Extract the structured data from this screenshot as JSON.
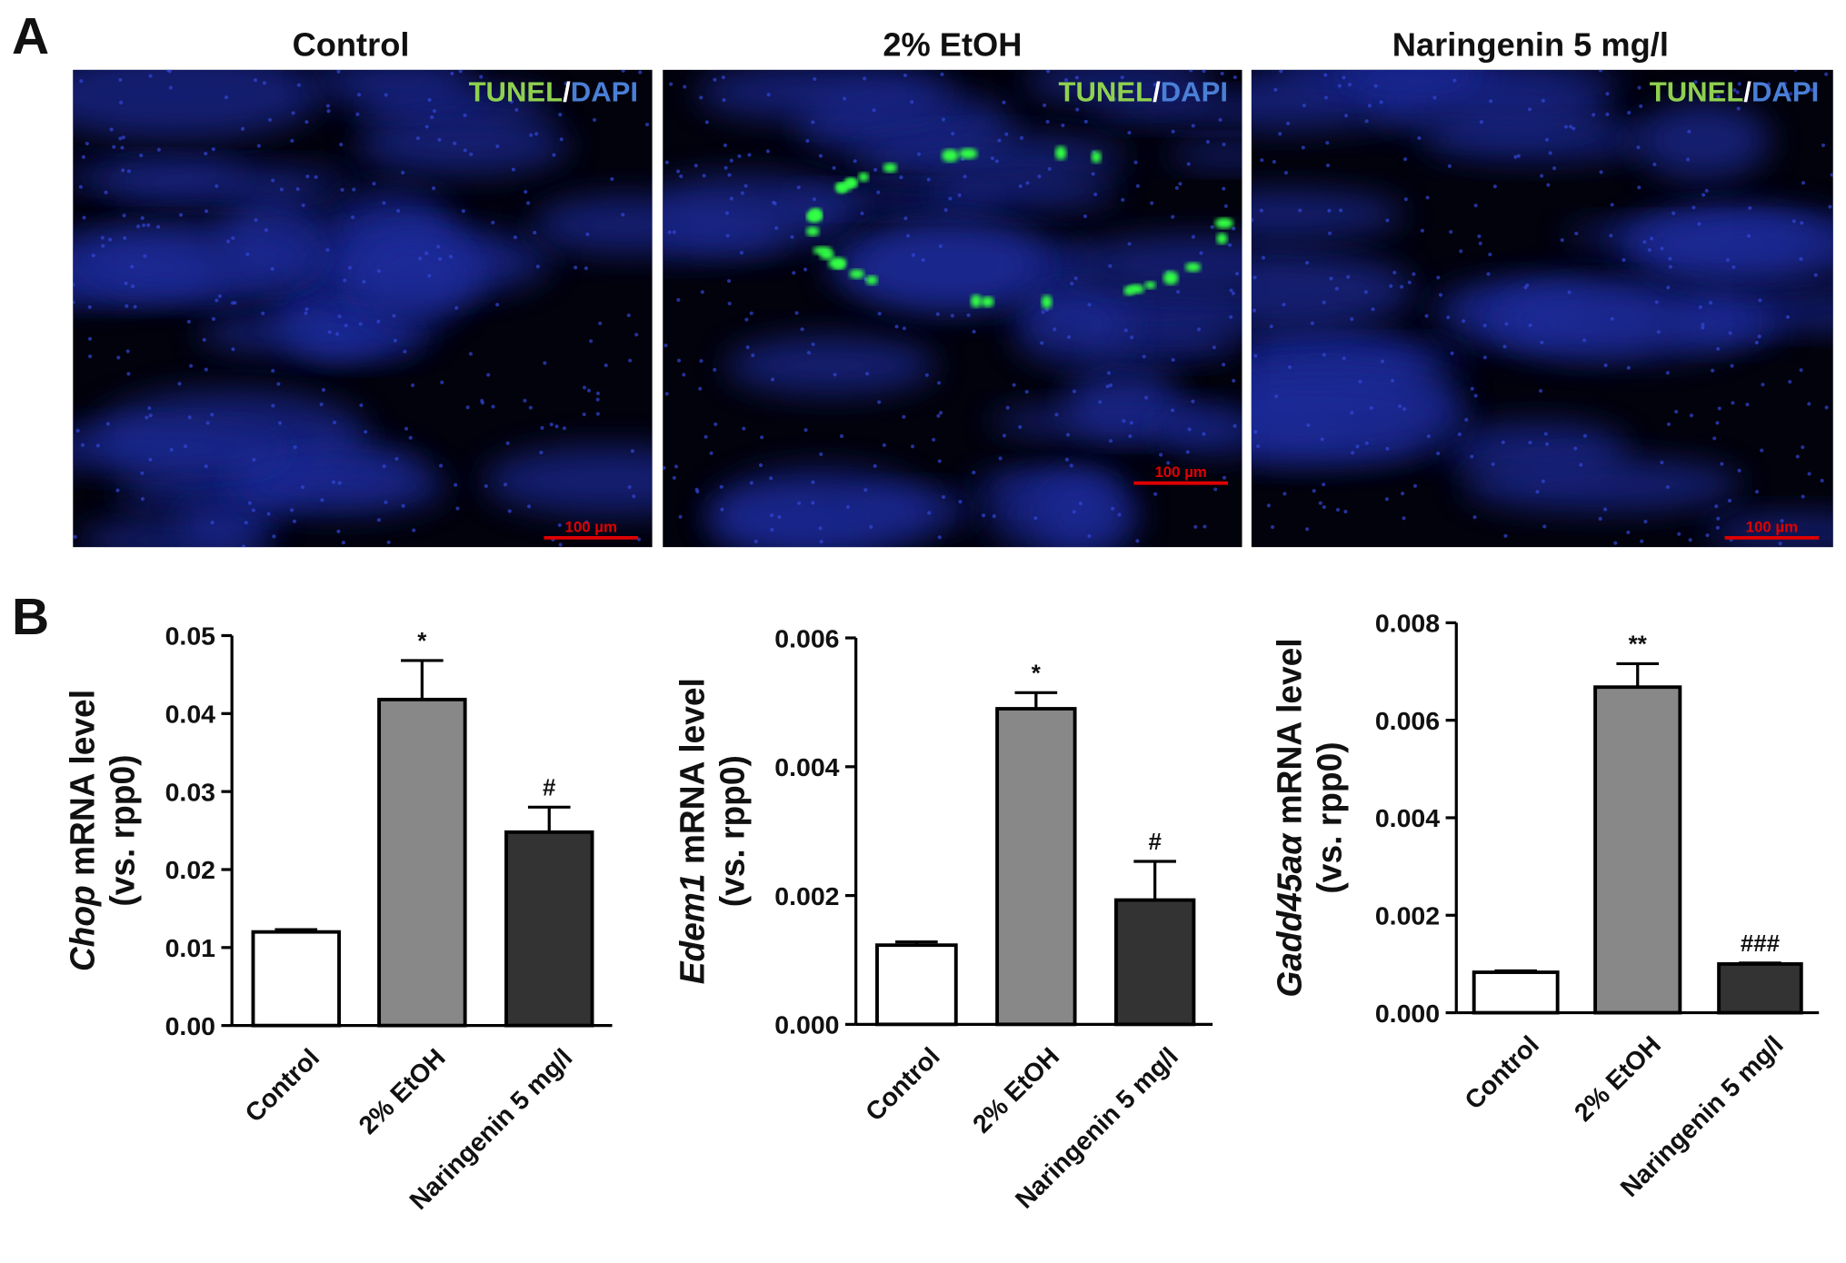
{
  "panel_a": {
    "label": "A",
    "images": [
      {
        "title": "Control",
        "stain_1": "TUNEL",
        "separator": "/",
        "stain_2": "DAPI",
        "scale_bar": "100 µm"
      },
      {
        "title": "2% EtOH",
        "stain_1": "TUNEL",
        "separator": "/",
        "stain_2": "DAPI",
        "scale_bar": "100 µm"
      },
      {
        "title": "Naringenin 5 mg/l",
        "stain_1": "TUNEL",
        "separator": "/",
        "stain_2": "DAPI",
        "scale_bar": "100 µm"
      }
    ]
  },
  "panel_b": {
    "label": "B"
  },
  "chart_data": [
    {
      "type": "bar",
      "ylabel_gene": "Chop",
      "ylabel_rest": " mRNA level",
      "ylabel_line2": "(vs. rpp0)",
      "categories": [
        "Control",
        "2% EtOH",
        "Naringenin 5 mg/l"
      ],
      "values": [
        0.012,
        0.0418,
        0.0248
      ],
      "errors": [
        0.0003,
        0.005,
        0.0032
      ],
      "annotations": [
        null,
        "*",
        "#"
      ],
      "colors": [
        "#ffffff",
        "#888888",
        "#333333"
      ],
      "ylim": [
        0,
        0.05
      ],
      "yticks": [
        {
          "value": 0,
          "label": "0.00"
        },
        0.01,
        0.02,
        0.03,
        0.04,
        0.05
      ]
    },
    {
      "type": "bar",
      "ylabel_gene": "Edem1",
      "ylabel_rest": " mRNA level",
      "ylabel_line2": "(vs. rpp0)",
      "categories": [
        "Control",
        "2% EtOH",
        "Naringenin 5 mg/l"
      ],
      "values": [
        0.00123,
        0.0049,
        0.00193
      ],
      "errors": [
        5e-05,
        0.00025,
        0.0006
      ],
      "annotations": [
        null,
        "*",
        "#"
      ],
      "colors": [
        "#ffffff",
        "#888888",
        "#333333"
      ],
      "ylim": [
        0,
        0.006
      ],
      "yticks": [
        {
          "value": 0,
          "label": "0.000"
        },
        0.002,
        0.004,
        0.006
      ]
    },
    {
      "type": "bar",
      "ylabel_gene": "Gadd45aα",
      "ylabel_rest": " mRNA level",
      "ylabel_line2": "(vs. rpp0)",
      "categories": [
        "Control",
        "2% EtOH",
        "Naringenin 5 mg/l"
      ],
      "values": [
        0.00083,
        0.00668,
        0.001
      ],
      "errors": [
        3e-05,
        0.00048,
        2e-05
      ],
      "annotations": [
        null,
        "**",
        "###"
      ],
      "colors": [
        "#ffffff",
        "#888888",
        "#333333"
      ],
      "ylim": [
        0,
        0.008
      ],
      "yticks": [
        {
          "value": 0,
          "label": "0.000"
        },
        0.002,
        0.004,
        0.006,
        0.008
      ]
    }
  ]
}
